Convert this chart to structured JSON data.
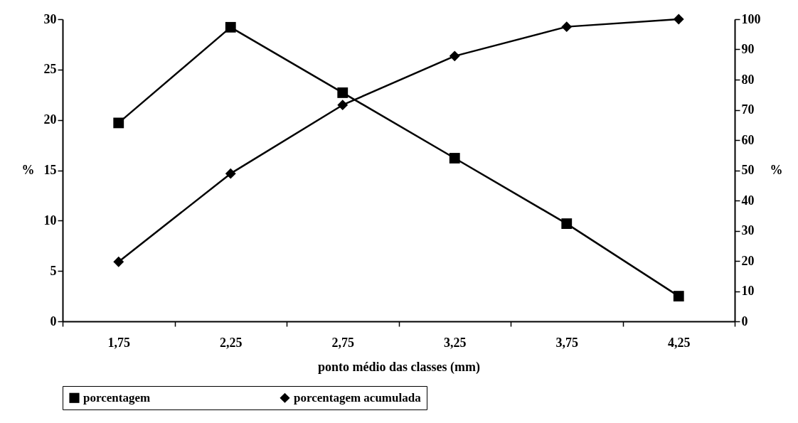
{
  "chart_data": {
    "type": "line",
    "xlabel": "ponto médio das classes (mm)",
    "ylabel": "%",
    "y2label": "%",
    "categories": [
      "1,75",
      "2,25",
      "2,75",
      "3,25",
      "3,75",
      "4,25"
    ],
    "series": [
      {
        "name": "porcentagem",
        "color": "#000000",
        "marker": "square",
        "values": [
          19.7,
          29.2,
          22.7,
          16.2,
          9.7,
          2.5
        ]
      },
      {
        "name": "porcentagem acumulada",
        "color": "#000000",
        "marker": "diamond",
        "axis": "y2",
        "values": [
          19.7,
          48.9,
          71.6,
          87.8,
          97.5,
          100
        ]
      }
    ],
    "ylim": [
      0,
      30
    ],
    "yticks": [
      0,
      5,
      10,
      15,
      20,
      25,
      30
    ],
    "y2lim": [
      0,
      100
    ],
    "y2ticks": [
      0,
      10,
      20,
      30,
      40,
      50,
      60,
      70,
      80,
      90,
      100
    ],
    "grid": false,
    "legend": "bottom"
  }
}
